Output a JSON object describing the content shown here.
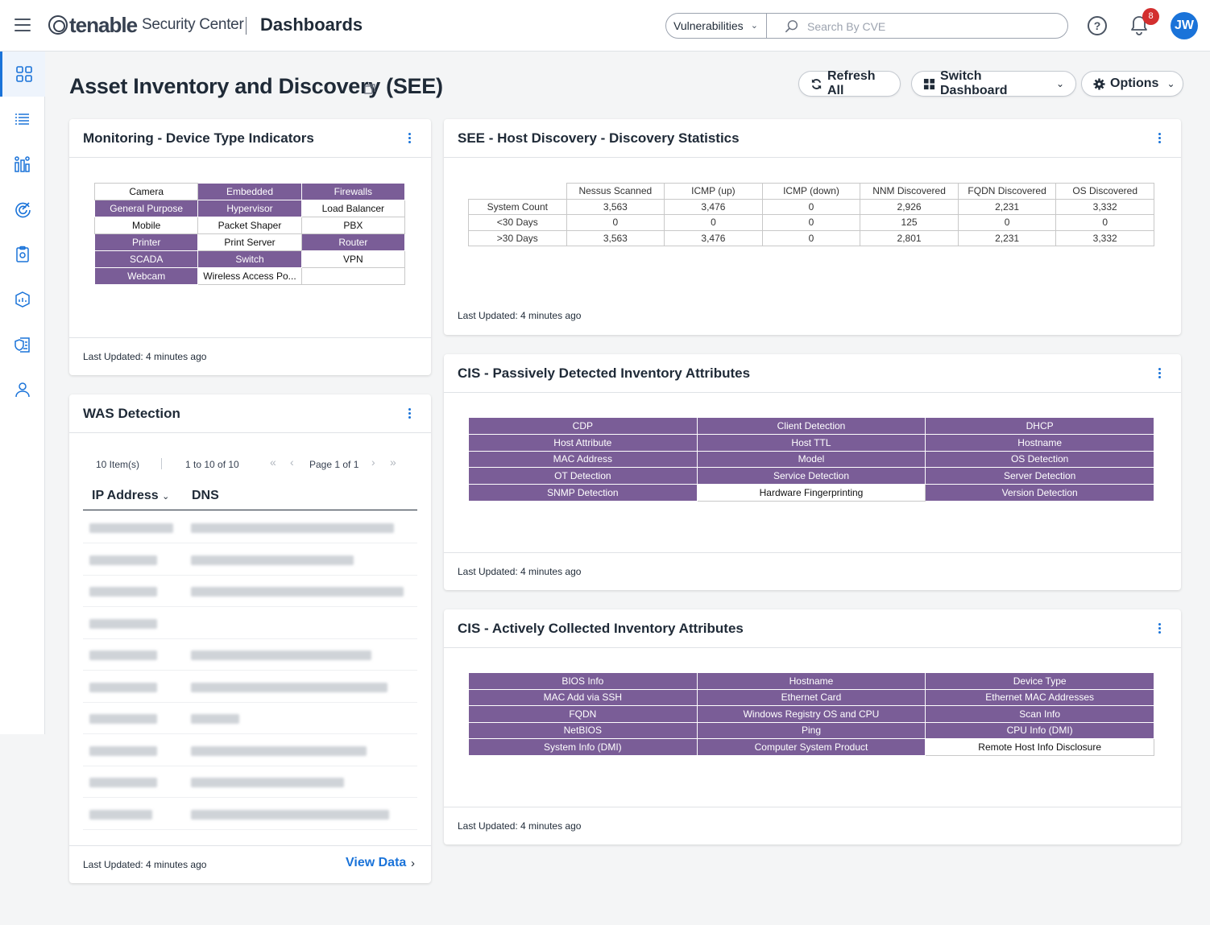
{
  "header": {
    "brand_name": "tenable",
    "brand_product": "Security Center",
    "section_title": "Dashboards",
    "type_select_value": "Vulnerabilities",
    "search_placeholder": "Search By CVE",
    "notification_count": "8",
    "user_initials": "JW",
    "accent_color": "#1a73d9"
  },
  "sidebar": {
    "items": [
      {
        "icon": "dashboard-grid-icon",
        "active": true
      },
      {
        "icon": "list-icon"
      },
      {
        "icon": "analysis-chart-icon"
      },
      {
        "icon": "scan-target-icon"
      },
      {
        "icon": "reports-icon"
      },
      {
        "icon": "assets-icon"
      },
      {
        "icon": "policy-shield-icon"
      },
      {
        "icon": "user-icon"
      }
    ]
  },
  "page": {
    "title": "Asset Inventory and Discovery (SEE)",
    "refresh_label": "Refresh All",
    "switch_label": "Switch Dashboard",
    "options_label": "Options"
  },
  "colors": {
    "matrix_purple": "#7a5d97"
  },
  "device_types": {
    "title": "Monitoring - Device Type Indicators",
    "updated": "Last Updated: 4 minutes ago",
    "rows": [
      [
        {
          "label": "Camera",
          "on": false
        },
        {
          "label": "Embedded",
          "on": true
        },
        {
          "label": "Firewalls",
          "on": true
        }
      ],
      [
        {
          "label": "General Purpose",
          "on": true
        },
        {
          "label": "Hypervisor",
          "on": true
        },
        {
          "label": "Load Balancer",
          "on": false
        }
      ],
      [
        {
          "label": "Mobile",
          "on": false
        },
        {
          "label": "Packet Shaper",
          "on": false
        },
        {
          "label": "PBX",
          "on": false
        }
      ],
      [
        {
          "label": "Printer",
          "on": true
        },
        {
          "label": "Print Server",
          "on": false
        },
        {
          "label": "Router",
          "on": true
        }
      ],
      [
        {
          "label": "SCADA",
          "on": true
        },
        {
          "label": "Switch",
          "on": true
        },
        {
          "label": "VPN",
          "on": false
        }
      ],
      [
        {
          "label": "Webcam",
          "on": true
        },
        {
          "label": "Wireless Access Po...",
          "on": false
        },
        {
          "label": "",
          "on": false
        }
      ]
    ]
  },
  "discovery": {
    "title": "SEE - Host Discovery - Discovery Statistics",
    "updated": "Last Updated: 4 minutes ago",
    "columns": [
      "Nessus Scanned",
      "ICMP (up)",
      "ICMP (down)",
      "NNM Discovered",
      "FQDN Discovered",
      "OS Discovered"
    ],
    "rows": [
      {
        "label": "System Count",
        "values": [
          "3,563",
          "3,476",
          "0",
          "2,926",
          "2,231",
          "3,332"
        ]
      },
      {
        "label": "<30 Days",
        "values": [
          "0",
          "0",
          "0",
          "125",
          "0",
          "0"
        ]
      },
      {
        "label": ">30 Days",
        "values": [
          "3,563",
          "3,476",
          "0",
          "2,801",
          "2,231",
          "3,332"
        ]
      }
    ]
  },
  "passive": {
    "title": "CIS - Passively Detected Inventory Attributes",
    "updated": "Last Updated: 4 minutes ago",
    "rows": [
      [
        {
          "label": "CDP",
          "on": true
        },
        {
          "label": "Client Detection",
          "on": true
        },
        {
          "label": "DHCP",
          "on": true
        }
      ],
      [
        {
          "label": "Host Attribute",
          "on": true
        },
        {
          "label": "Host TTL",
          "on": true
        },
        {
          "label": "Hostname",
          "on": true
        }
      ],
      [
        {
          "label": "MAC Address",
          "on": true
        },
        {
          "label": "Model",
          "on": true
        },
        {
          "label": "OS Detection",
          "on": true
        }
      ],
      [
        {
          "label": "OT Detection",
          "on": true
        },
        {
          "label": "Service Detection",
          "on": true
        },
        {
          "label": "Server Detection",
          "on": true
        }
      ],
      [
        {
          "label": "SNMP Detection",
          "on": true
        },
        {
          "label": "Hardware Fingerprinting",
          "on": false
        },
        {
          "label": "Version Detection",
          "on": true
        }
      ]
    ]
  },
  "active": {
    "title": "CIS - Actively Collected Inventory Attributes",
    "updated": "Last Updated: 4 minutes ago",
    "rows": [
      [
        {
          "label": "BIOS Info",
          "on": true
        },
        {
          "label": "Hostname",
          "on": true
        },
        {
          "label": "Device Type",
          "on": true
        }
      ],
      [
        {
          "label": "MAC Add via SSH",
          "on": true
        },
        {
          "label": "Ethernet Card",
          "on": true
        },
        {
          "label": "Ethernet MAC Addresses",
          "on": true
        }
      ],
      [
        {
          "label": "FQDN",
          "on": true
        },
        {
          "label": "Windows Registry OS and CPU",
          "on": true
        },
        {
          "label": "Scan Info",
          "on": true
        }
      ],
      [
        {
          "label": "NetBIOS",
          "on": true
        },
        {
          "label": "Ping",
          "on": true
        },
        {
          "label": "CPU Info (DMI)",
          "on": true
        }
      ],
      [
        {
          "label": "System Info (DMI)",
          "on": true
        },
        {
          "label": "Computer System Product",
          "on": true
        },
        {
          "label": "Remote Host Info Disclosure",
          "on": false
        }
      ]
    ]
  },
  "was": {
    "title": "WAS Detection",
    "item_count": "10 Item(s)",
    "range": "1 to 10 of 10",
    "page": "Page 1 of 1",
    "col_ip": "IP Address",
    "col_dns": "DNS",
    "updated": "Last Updated: 4 minutes ago",
    "view_data": "View Data",
    "row_count": 10
  }
}
